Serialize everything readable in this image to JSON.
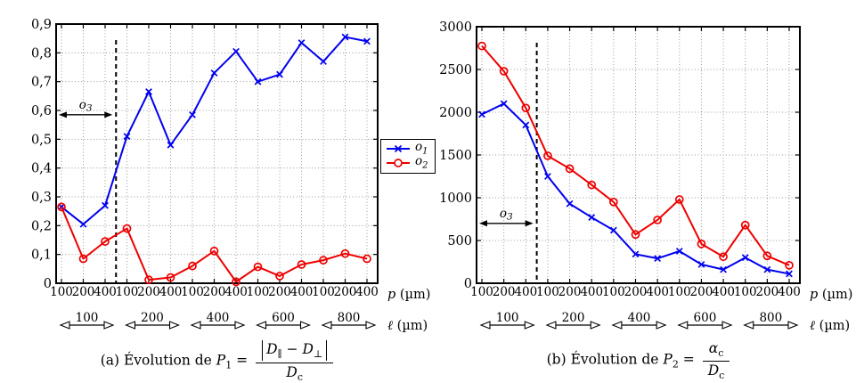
{
  "figure": {
    "bg": "#ffffff",
    "frame_color": "#000000",
    "grid_color": "#999999",
    "legend": {
      "items": [
        {
          "var": "o",
          "sub": "1",
          "color": "#0000ee",
          "marker": "x"
        },
        {
          "var": "o",
          "sub": "2",
          "color": "#ee0000",
          "marker": "circle"
        }
      ]
    }
  },
  "chart_data": [
    {
      "type": "line",
      "title": "",
      "ylim": [
        0,
        0.9
      ],
      "grid": true,
      "legend_position": "external-right-of-panel",
      "y_ticks": [
        {
          "v": 0,
          "label": "0"
        },
        {
          "v": 0.1,
          "label": "0,1"
        },
        {
          "v": 0.2,
          "label": "0,2"
        },
        {
          "v": 0.3,
          "label": "0,3"
        },
        {
          "v": 0.4,
          "label": "0,4"
        },
        {
          "v": 0.5,
          "label": "0,5"
        },
        {
          "v": 0.6,
          "label": "0,6"
        },
        {
          "v": 0.7,
          "label": "0,7"
        },
        {
          "v": 0.8,
          "label": "0,8"
        },
        {
          "v": 0.9,
          "label": "0,9"
        }
      ],
      "x_tick_labels": [
        "100",
        "200",
        "400",
        "100",
        "200",
        "400",
        "100",
        "200",
        "400",
        "100",
        "200",
        "400",
        "100",
        "200",
        "400"
      ],
      "xlabel": {
        "var": "p",
        "unit": "(µm)"
      },
      "group_axis": {
        "var": "ℓ",
        "unit": "(µm)",
        "groups": [
          "100",
          "200",
          "400",
          "600",
          "800"
        ]
      },
      "dashed_boundary_after_point": 3,
      "annotation": {
        "var": "o",
        "sub": "3",
        "y_value": 0.585
      },
      "series": [
        {
          "name": "o1",
          "color": "#0000ee",
          "marker": "x",
          "values": [
            0.265,
            0.205,
            0.27,
            0.51,
            0.665,
            0.48,
            0.585,
            0.73,
            0.805,
            0.7,
            0.725,
            0.835,
            0.77,
            0.855,
            0.84
          ]
        },
        {
          "name": "o2",
          "color": "#ee0000",
          "marker": "circle",
          "values": [
            0.265,
            0.085,
            0.145,
            0.19,
            0.012,
            0.02,
            0.06,
            0.112,
            0.005,
            0.057,
            0.025,
            0.065,
            0.08,
            0.103,
            0.085
          ]
        }
      ],
      "caption": {
        "idx": "(a)",
        "lead": "Évolution de",
        "param": "P",
        "param_sub": "1",
        "eq": "=",
        "num_d1": "D",
        "num_d1_sub": "∥",
        "num_minus": "−",
        "num_d2": "D",
        "num_d2_sub": "⊥",
        "den": "D",
        "den_sub": "c"
      }
    },
    {
      "type": "line",
      "title": "",
      "ylim": [
        0,
        3000
      ],
      "grid": true,
      "y_ticks": [
        {
          "v": 0,
          "label": "0"
        },
        {
          "v": 500,
          "label": "500"
        },
        {
          "v": 1000,
          "label": "1000"
        },
        {
          "v": 1500,
          "label": "1500"
        },
        {
          "v": 2000,
          "label": "2000"
        },
        {
          "v": 2500,
          "label": "2500"
        },
        {
          "v": 3000,
          "label": "3000"
        }
      ],
      "x_tick_labels": [
        "100",
        "200",
        "400",
        "100",
        "200",
        "400",
        "100",
        "200",
        "400",
        "100",
        "200",
        "400",
        "100",
        "200",
        "400"
      ],
      "xlabel": {
        "var": "p",
        "unit": "(µm)"
      },
      "group_axis": {
        "var": "ℓ",
        "unit": "(µm)",
        "groups": [
          "100",
          "200",
          "400",
          "600",
          "800"
        ]
      },
      "dashed_boundary_after_point": 3,
      "annotation": {
        "var": "o",
        "sub": "3",
        "y_value": 700
      },
      "series": [
        {
          "name": "o1",
          "color": "#0000ee",
          "marker": "x",
          "values": [
            1975,
            2100,
            1850,
            1250,
            930,
            770,
            620,
            340,
            290,
            375,
            220,
            160,
            300,
            160,
            110
          ]
        },
        {
          "name": "o2",
          "color": "#ee0000",
          "marker": "circle",
          "values": [
            2775,
            2480,
            2050,
            1490,
            1340,
            1150,
            950,
            570,
            740,
            980,
            460,
            310,
            680,
            320,
            210
          ]
        }
      ],
      "caption": {
        "idx": "(b)",
        "lead": "Évolution de",
        "param": "P",
        "param_sub": "2",
        "eq": "=",
        "num": "α",
        "num_sub": "c",
        "den": "D",
        "den_sub": "c"
      }
    }
  ]
}
